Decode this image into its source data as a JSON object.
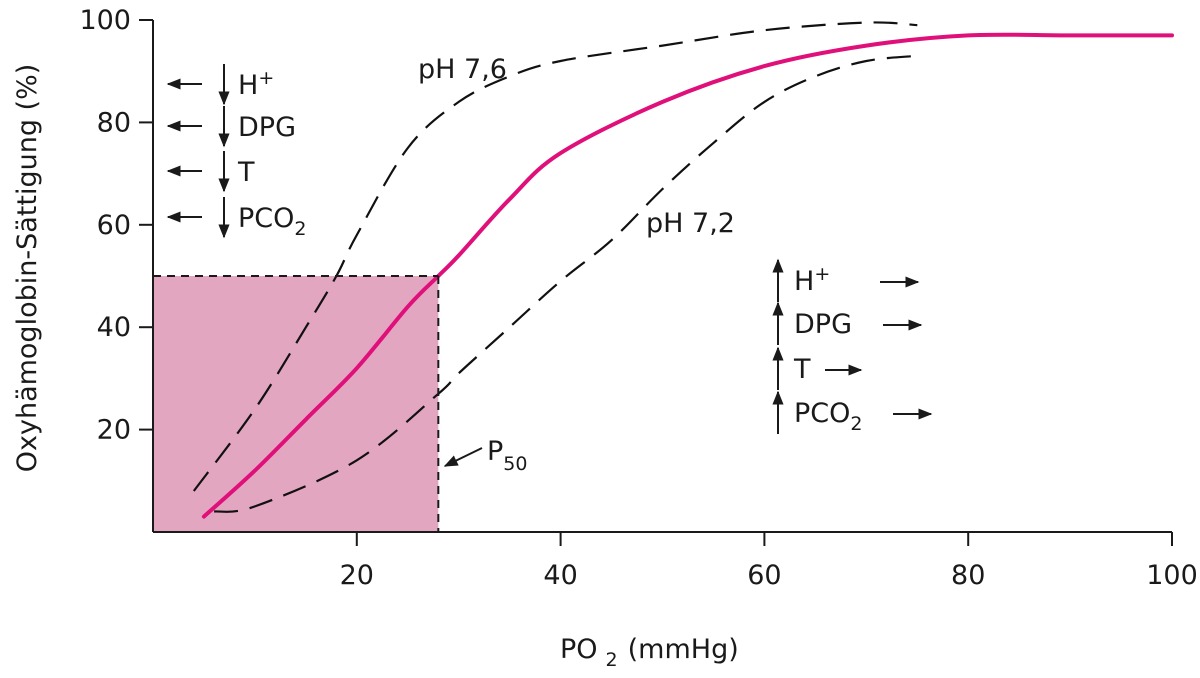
{
  "chart_data": {
    "type": "line",
    "title": "",
    "xlabel": {
      "main": "PO",
      "sub": "2",
      "unit": "(mmHg)"
    },
    "ylabel": "Oxyhämoglobin-Sättigung (%)",
    "xlim": [
      0,
      100
    ],
    "ylim": [
      0,
      100
    ],
    "x_ticks": [
      "20",
      "40",
      "60",
      "80",
      "100"
    ],
    "y_ticks": [
      "20",
      "40",
      "60",
      "80",
      "100"
    ],
    "grid": false,
    "legend": "none",
    "colors": {
      "normal": "#e0107a",
      "shaded": "#e3a6c1",
      "dashed": "#111111"
    },
    "series": [
      {
        "name": "",
        "style": "solid",
        "x": [
          5,
          10,
          15,
          20,
          25,
          28,
          30,
          35,
          40,
          50,
          60,
          70,
          80,
          90,
          100
        ],
        "y": [
          3,
          12,
          22,
          32,
          44,
          50,
          54,
          65,
          74,
          84,
          91,
          95,
          97,
          97,
          97
        ]
      },
      {
        "name": "pH 7,6",
        "style": "dashed",
        "x": [
          4,
          10,
          15,
          18,
          20,
          25,
          30,
          35,
          40,
          50,
          60,
          70,
          75
        ],
        "y": [
          8,
          24,
          40,
          50,
          58,
          75,
          84,
          89,
          92,
          95,
          98,
          99.5,
          99
        ]
      },
      {
        "name": "pH 7,2",
        "style": "dashed",
        "x": [
          6,
          10,
          20,
          28,
          30,
          35,
          40,
          45,
          50,
          55,
          60,
          65,
          70,
          75
        ],
        "y": [
          4,
          5,
          14,
          27,
          31,
          40,
          49,
          57,
          67,
          76,
          84,
          89,
          92,
          93
        ]
      }
    ],
    "p50": {
      "x": 28,
      "y": 50,
      "label": "P",
      "sub": "50"
    },
    "left_factors": [
      {
        "text": "H",
        "sup": "+",
        "sub": ""
      },
      {
        "text": "DPG",
        "sup": "",
        "sub": ""
      },
      {
        "text": "T",
        "sup": "",
        "sub": ""
      },
      {
        "text": "PCO",
        "sup": "",
        "sub": "2"
      }
    ],
    "right_factors": [
      {
        "text": "H",
        "sup": "+",
        "sub": ""
      },
      {
        "text": "DPG",
        "sup": "",
        "sub": ""
      },
      {
        "text": "T",
        "sup": "",
        "sub": ""
      },
      {
        "text": "PCO",
        "sup": "",
        "sub": "2"
      }
    ]
  }
}
